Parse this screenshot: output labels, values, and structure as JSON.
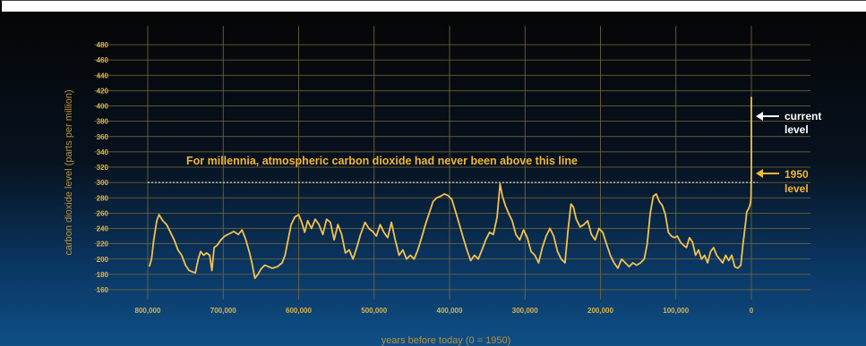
{
  "chart_data": {
    "type": "line",
    "title": "",
    "xlabel": "years before today (0 = 1950)",
    "ylabel": "carbon dioxide level (parts per million)",
    "xlim": [
      800000,
      0
    ],
    "ylim": [
      150,
      495
    ],
    "y_ticks": [
      160,
      180,
      200,
      220,
      240,
      260,
      280,
      300,
      320,
      340,
      360,
      380,
      400,
      420,
      440,
      460,
      480
    ],
    "y_tick_labels": [
      "160",
      "180",
      "200",
      "220",
      "240",
      "260",
      "280",
      "300",
      "320",
      "340",
      "360",
      "380",
      "400",
      "420",
      "440",
      "460",
      "480"
    ],
    "x_ticks": [
      800000,
      700000,
      600000,
      500000,
      400000,
      300000,
      200000,
      100000,
      0
    ],
    "x_tick_labels": [
      "800,000",
      "700,000",
      "600,000",
      "500,000",
      "400,000",
      "300,000",
      "200,000",
      "100,000",
      "0"
    ],
    "grid": true,
    "reference_line": {
      "y": 300,
      "style": "dotted",
      "label": "For millennia, atmospheric carbon dioxide had never been above this line"
    },
    "annotations": {
      "current": {
        "line1": "current",
        "line2": "level",
        "y": 412
      },
      "level_1950": {
        "line1": "1950",
        "line2": "level",
        "y": 311
      }
    },
    "colors": {
      "line": "#f2c14e",
      "text": "#f2b632",
      "background_top": "#050505",
      "background_bottom": "#0f4f86",
      "grid": "#7a6a3a"
    },
    "series": [
      {
        "values": [
          [
            798000,
            190
          ],
          [
            795000,
            200
          ],
          [
            792000,
            225
          ],
          [
            788000,
            250
          ],
          [
            785000,
            258
          ],
          [
            780000,
            250
          ],
          [
            775000,
            245
          ],
          [
            770000,
            235
          ],
          [
            765000,
            225
          ],
          [
            760000,
            212
          ],
          [
            755000,
            205
          ],
          [
            750000,
            192
          ],
          [
            745000,
            185
          ],
          [
            740000,
            183
          ],
          [
            737000,
            182
          ],
          [
            733000,
            200
          ],
          [
            730000,
            210
          ],
          [
            726000,
            205
          ],
          [
            722000,
            208
          ],
          [
            718000,
            205
          ],
          [
            715000,
            185
          ],
          [
            712000,
            215
          ],
          [
            708000,
            218
          ],
          [
            703000,
            225
          ],
          [
            698000,
            230
          ],
          [
            692000,
            233
          ],
          [
            686000,
            236
          ],
          [
            680000,
            232
          ],
          [
            675000,
            238
          ],
          [
            670000,
            225
          ],
          [
            665000,
            208
          ],
          [
            662000,
            195
          ],
          [
            658000,
            175
          ],
          [
            654000,
            180
          ],
          [
            650000,
            187
          ],
          [
            645000,
            192
          ],
          [
            640000,
            190
          ],
          [
            635000,
            188
          ],
          [
            628000,
            190
          ],
          [
            622000,
            195
          ],
          [
            618000,
            205
          ],
          [
            614000,
            225
          ],
          [
            610000,
            245
          ],
          [
            605000,
            255
          ],
          [
            600000,
            258
          ],
          [
            596000,
            248
          ],
          [
            592000,
            235
          ],
          [
            588000,
            250
          ],
          [
            583000,
            240
          ],
          [
            578000,
            252
          ],
          [
            573000,
            245
          ],
          [
            568000,
            232
          ],
          [
            563000,
            252
          ],
          [
            558000,
            248
          ],
          [
            553000,
            225
          ],
          [
            548000,
            245
          ],
          [
            543000,
            232
          ],
          [
            538000,
            208
          ],
          [
            533000,
            212
          ],
          [
            528000,
            200
          ],
          [
            523000,
            215
          ],
          [
            518000,
            232
          ],
          [
            512000,
            248
          ],
          [
            507000,
            240
          ],
          [
            502000,
            236
          ],
          [
            497000,
            230
          ],
          [
            492000,
            245
          ],
          [
            487000,
            235
          ],
          [
            482000,
            228
          ],
          [
            477000,
            248
          ],
          [
            472000,
            225
          ],
          [
            467000,
            205
          ],
          [
            462000,
            212
          ],
          [
            457000,
            200
          ],
          [
            452000,
            205
          ],
          [
            447000,
            200
          ],
          [
            442000,
            212
          ],
          [
            437000,
            228
          ],
          [
            432000,
            245
          ],
          [
            427000,
            260
          ],
          [
            422000,
            275
          ],
          [
            417000,
            280
          ],
          [
            412000,
            282
          ],
          [
            407000,
            285
          ],
          [
            402000,
            283
          ],
          [
            397000,
            278
          ],
          [
            392000,
            262
          ],
          [
            387000,
            245
          ],
          [
            382000,
            228
          ],
          [
            377000,
            212
          ],
          [
            372000,
            198
          ],
          [
            367000,
            205
          ],
          [
            362000,
            200
          ],
          [
            357000,
            212
          ],
          [
            352000,
            225
          ],
          [
            347000,
            235
          ],
          [
            342000,
            232
          ],
          [
            337000,
            255
          ],
          [
            333000,
            298
          ],
          [
            330000,
            282
          ],
          [
            326000,
            270
          ],
          [
            321000,
            258
          ],
          [
            317000,
            250
          ],
          [
            312000,
            232
          ],
          [
            307000,
            225
          ],
          [
            302000,
            238
          ],
          [
            297000,
            228
          ],
          [
            292000,
            210
          ],
          [
            287000,
            205
          ],
          [
            282000,
            195
          ],
          [
            277000,
            215
          ],
          [
            272000,
            230
          ],
          [
            267000,
            240
          ],
          [
            262000,
            230
          ],
          [
            257000,
            210
          ],
          [
            252000,
            200
          ],
          [
            247000,
            195
          ],
          [
            243000,
            238
          ],
          [
            239000,
            272
          ],
          [
            236000,
            268
          ],
          [
            232000,
            252
          ],
          [
            227000,
            242
          ],
          [
            222000,
            245
          ],
          [
            217000,
            250
          ],
          [
            212000,
            232
          ],
          [
            207000,
            225
          ],
          [
            202000,
            240
          ],
          [
            197000,
            235
          ],
          [
            192000,
            220
          ],
          [
            187000,
            205
          ],
          [
            182000,
            195
          ],
          [
            177000,
            188
          ],
          [
            172000,
            200
          ],
          [
            167000,
            195
          ],
          [
            162000,
            190
          ],
          [
            157000,
            195
          ],
          [
            152000,
            192
          ],
          [
            147000,
            195
          ],
          [
            142000,
            200
          ],
          [
            138000,
            220
          ],
          [
            134000,
            260
          ],
          [
            130000,
            282
          ],
          [
            126000,
            285
          ],
          [
            122000,
            275
          ],
          [
            118000,
            270
          ],
          [
            114000,
            258
          ],
          [
            110000,
            235
          ],
          [
            106000,
            230
          ],
          [
            102000,
            228
          ],
          [
            98000,
            230
          ],
          [
            94000,
            222
          ],
          [
            90000,
            218
          ],
          [
            86000,
            215
          ],
          [
            82000,
            228
          ],
          [
            78000,
            222
          ],
          [
            74000,
            205
          ],
          [
            70000,
            212
          ],
          [
            66000,
            200
          ],
          [
            62000,
            205
          ],
          [
            58000,
            195
          ],
          [
            54000,
            210
          ],
          [
            50000,
            215
          ],
          [
            46000,
            205
          ],
          [
            42000,
            200
          ],
          [
            38000,
            195
          ],
          [
            34000,
            205
          ],
          [
            30000,
            198
          ],
          [
            26000,
            205
          ],
          [
            22000,
            190
          ],
          [
            18000,
            188
          ],
          [
            14000,
            192
          ],
          [
            11000,
            220
          ],
          [
            8000,
            245
          ],
          [
            6000,
            262
          ],
          [
            4000,
            265
          ],
          [
            2000,
            270
          ],
          [
            1000,
            275
          ],
          [
            500,
            280
          ],
          [
            0,
            311
          ],
          [
            0,
            412
          ]
        ]
      }
    ]
  }
}
